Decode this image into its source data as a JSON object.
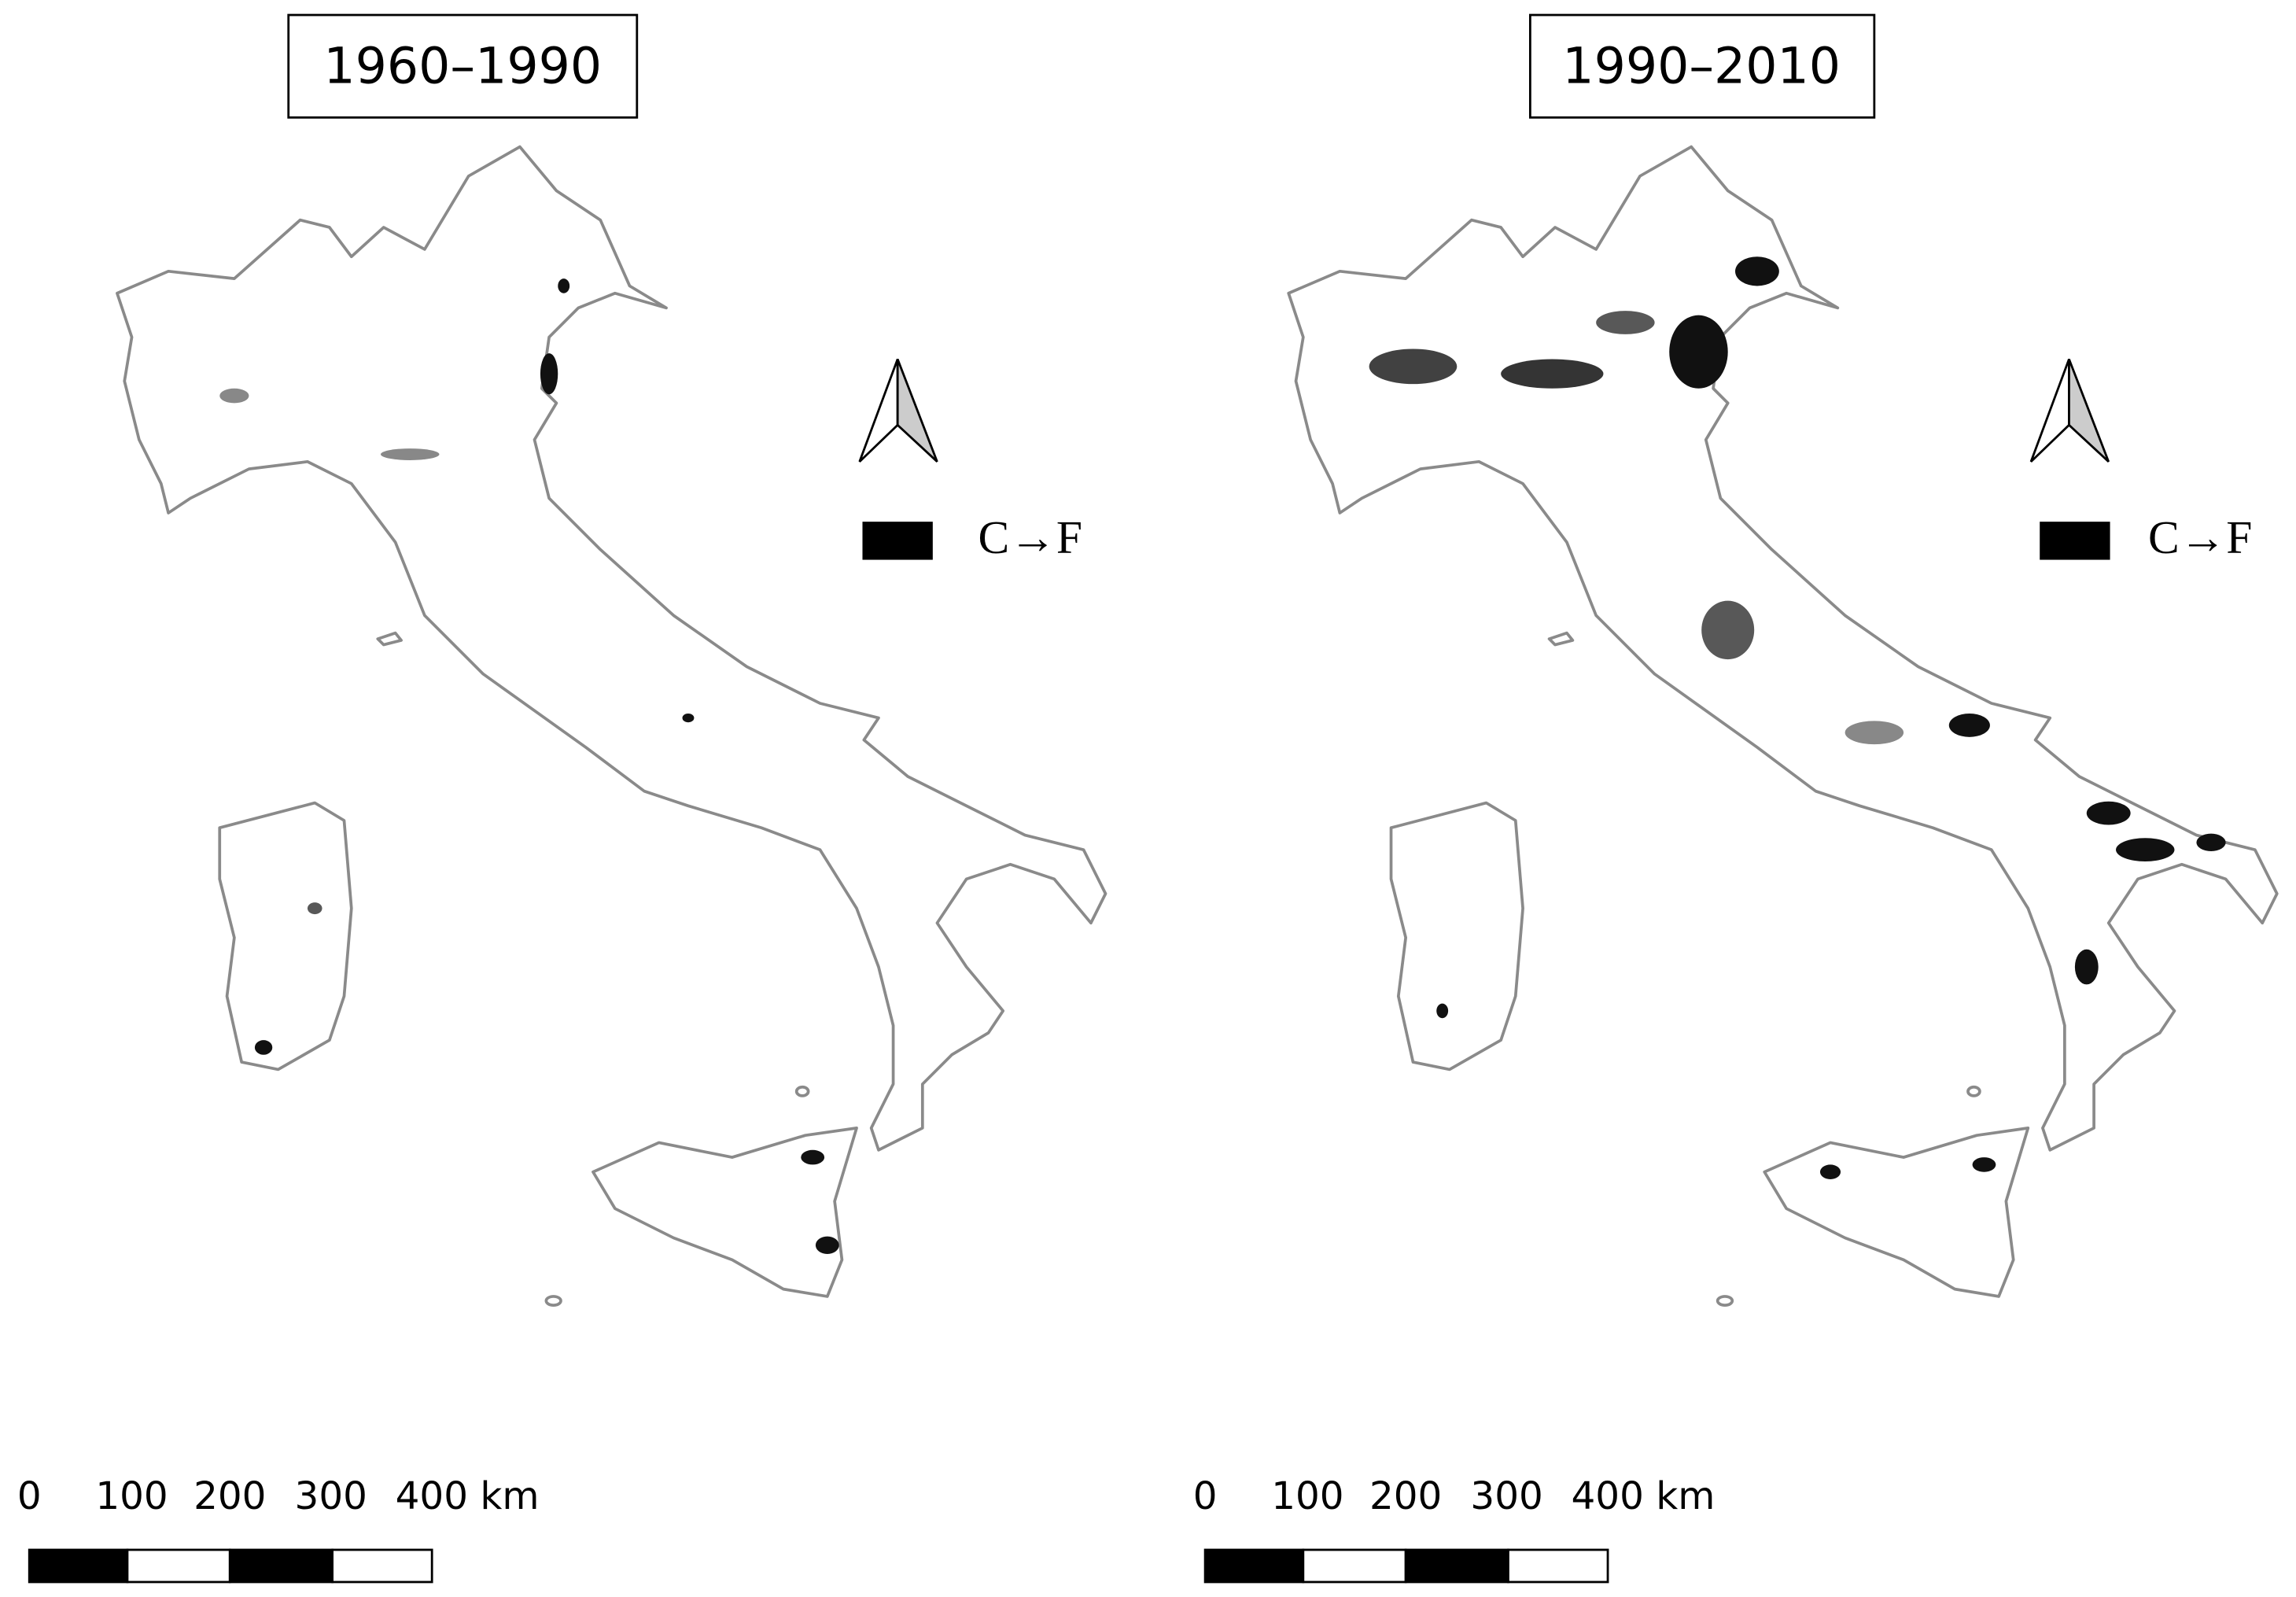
{
  "panels": [
    {
      "title": "1960–1990",
      "legend": "C→F",
      "scale": [
        "0",
        "100",
        "200",
        "300",
        "400 km"
      ]
    },
    {
      "title": "1990–2010",
      "legend": "C→F",
      "scale": [
        "0",
        "100",
        "200",
        "300",
        "400 km"
      ]
    }
  ]
}
